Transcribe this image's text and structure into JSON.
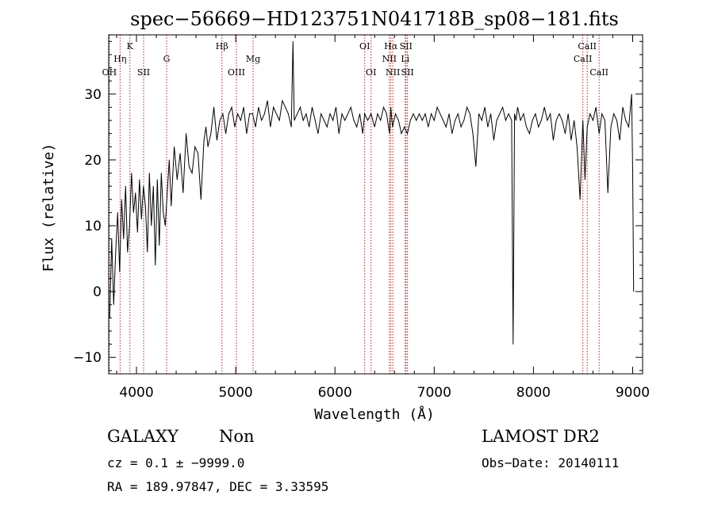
{
  "chart_data": {
    "type": "line",
    "title": "spec−56669−HD123751N041718B_sp08−181.fits",
    "xlabel": "Wavelength (Å)",
    "ylabel": "Flux (relative)",
    "xlim": [
      3720,
      9100
    ],
    "ylim": [
      -12.5,
      39
    ],
    "x_ticks": [
      4000,
      5000,
      6000,
      7000,
      8000,
      9000
    ],
    "x_tick_labels": [
      "4000",
      "5000",
      "6000",
      "7000",
      "8000",
      "9000"
    ],
    "y_ticks": [
      -10,
      0,
      10,
      20,
      30
    ],
    "y_tick_labels": [
      "−10",
      "0",
      "10",
      "20",
      "30"
    ],
    "grid": false,
    "line_color": "#000000",
    "marker_color": "#b22222",
    "line_markers": [
      {
        "label": "OH",
        "wavelength": 3727,
        "row": 3
      },
      {
        "label": "Hη",
        "wavelength": 3835,
        "row": 2
      },
      {
        "label": "K",
        "wavelength": 3934,
        "row": 1
      },
      {
        "label": "SII",
        "wavelength": 4072,
        "row": 3
      },
      {
        "label": "G",
        "wavelength": 4304,
        "row": 2
      },
      {
        "label": "Hβ",
        "wavelength": 4861,
        "row": 1
      },
      {
        "label": "OIII",
        "wavelength": 5007,
        "row": 3
      },
      {
        "label": "Mg",
        "wavelength": 5175,
        "row": 2
      },
      {
        "label": "OI",
        "wavelength": 6300,
        "row": 1
      },
      {
        "label": "OI",
        "wavelength": 6364,
        "row": 3
      },
      {
        "label": "NII",
        "wavelength": 6548,
        "row": 2
      },
      {
        "label": "Hα",
        "wavelength": 6563,
        "row": 1
      },
      {
        "label": "NII",
        "wavelength": 6583,
        "row": 3
      },
      {
        "label": "Li",
        "wavelength": 6708,
        "row": 2
      },
      {
        "label": "SII",
        "wavelength": 6716,
        "row": 1
      },
      {
        "label": "SII",
        "wavelength": 6731,
        "row": 3
      },
      {
        "label": "CaII",
        "wavelength": 8498,
        "row": 2
      },
      {
        "label": "CaII",
        "wavelength": 8542,
        "row": 1
      },
      {
        "label": "CaII",
        "wavelength": 8662,
        "row": 3
      }
    ],
    "series": [
      {
        "x": [
          3730,
          3750,
          3770,
          3790,
          3810,
          3830,
          3850,
          3870,
          3890,
          3910,
          3930,
          3950,
          3970,
          3990,
          4010,
          4030,
          4050,
          4070,
          4090,
          4110,
          4130,
          4150,
          4170,
          4190,
          4210,
          4230,
          4250,
          4270,
          4290,
          4310,
          4330,
          4350,
          4380,
          4410,
          4440,
          4470,
          4500,
          4530,
          4560,
          4590,
          4620,
          4650,
          4680,
          4700,
          4720,
          4750,
          4780,
          4810,
          4840,
          4870,
          4900,
          4930,
          4960,
          4990,
          5020,
          5050,
          5080,
          5110,
          5140,
          5170,
          5200,
          5230,
          5260,
          5290,
          5320,
          5350,
          5380,
          5410,
          5440,
          5470,
          5500,
          5530,
          5560,
          5577,
          5590,
          5620,
          5650,
          5680,
          5710,
          5740,
          5770,
          5800,
          5830,
          5860,
          5890,
          5920,
          5950,
          5980,
          6010,
          6040,
          6070,
          6100,
          6130,
          6160,
          6190,
          6220,
          6250,
          6280,
          6300,
          6330,
          6364,
          6400,
          6430,
          6460,
          6490,
          6520,
          6550,
          6563,
          6580,
          6610,
          6640,
          6670,
          6700,
          6730,
          6760,
          6790,
          6820,
          6850,
          6880,
          6910,
          6940,
          6970,
          7000,
          7030,
          7060,
          7090,
          7120,
          7150,
          7180,
          7210,
          7240,
          7270,
          7300,
          7330,
          7360,
          7390,
          7420,
          7450,
          7480,
          7510,
          7540,
          7570,
          7600,
          7630,
          7660,
          7690,
          7720,
          7750,
          7780,
          7795,
          7810,
          7825,
          7840,
          7870,
          7900,
          7930,
          7960,
          7990,
          8020,
          8050,
          8080,
          8110,
          8140,
          8170,
          8200,
          8230,
          8260,
          8290,
          8320,
          8350,
          8380,
          8410,
          8440,
          8470,
          8498,
          8520,
          8542,
          8570,
          8600,
          8630,
          8662,
          8690,
          8720,
          8750,
          8780,
          8810,
          8840,
          8870,
          8900,
          8930,
          8960,
          8990,
          9000,
          9010
        ],
        "y": [
          -4,
          8,
          -2,
          6,
          12,
          3,
          14,
          8,
          16,
          6,
          10,
          18,
          12,
          15,
          9,
          17,
          11,
          16,
          13,
          6,
          18,
          10,
          16,
          4,
          17,
          7,
          18,
          12,
          10,
          15,
          20,
          13,
          22,
          17,
          21,
          15,
          24,
          19,
          18,
          22,
          21,
          14,
          23,
          25,
          22,
          24,
          28,
          23,
          26,
          27,
          24,
          27,
          28,
          25,
          27,
          26,
          28,
          24,
          27,
          27,
          25,
          28,
          26,
          27,
          29,
          25,
          28,
          27,
          26,
          29,
          28,
          27,
          25,
          38,
          26,
          27,
          28,
          26,
          27,
          25,
          28,
          26,
          24,
          27,
          26,
          25,
          27,
          26,
          28,
          24,
          27,
          26,
          27,
          28,
          26,
          25,
          27,
          24,
          27,
          26,
          27,
          25,
          27,
          26,
          28,
          27,
          24,
          28,
          25,
          27,
          26,
          24,
          25,
          24,
          26,
          27,
          26,
          27,
          26,
          27,
          25,
          27,
          26,
          28,
          27,
          26,
          25,
          27,
          24,
          26,
          27,
          25,
          26,
          28,
          27,
          24,
          19,
          27,
          26,
          28,
          25,
          27,
          23,
          26,
          27,
          28,
          26,
          27,
          26,
          -8,
          27,
          26,
          28,
          26,
          27,
          25,
          24,
          26,
          27,
          25,
          26,
          28,
          26,
          27,
          23,
          26,
          27,
          26,
          24,
          27,
          23,
          26,
          22,
          14,
          26,
          17,
          25,
          27,
          26,
          28,
          24,
          27,
          26,
          15,
          25,
          27,
          26,
          23,
          28,
          26,
          25,
          30,
          18,
          0
        ]
      }
    ]
  },
  "footer": {
    "left_line1_a": "GALAXY",
    "left_line1_b": "Non",
    "left_line2": "cz = 0.1 ± −9999.0",
    "left_line3": "RA = 189.97847, DEC =    3.33595",
    "right_line1": "LAMOST DR2",
    "right_line2": "Obs−Date: 20140111"
  }
}
